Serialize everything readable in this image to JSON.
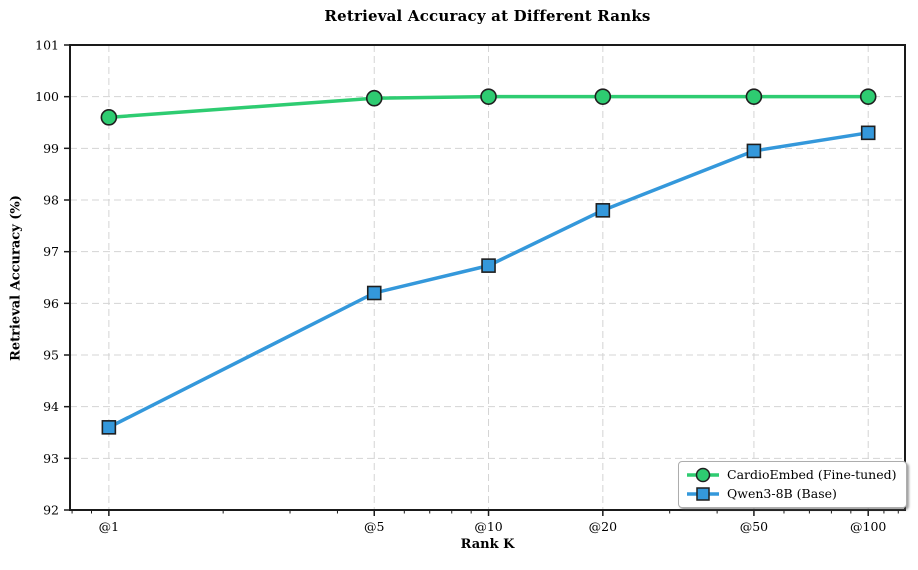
{
  "chart_data": {
    "type": "line",
    "title": "Retrieval Accuracy at Different Ranks",
    "xlabel": "Rank K",
    "ylabel": "Retrieval Accuracy (%)",
    "xscale": "log",
    "x": [
      1,
      5,
      10,
      20,
      50,
      100
    ],
    "x_tick_labels": [
      "@1",
      "@5",
      "@10",
      "@20",
      "@50",
      "@100"
    ],
    "x_minor_ticks": [
      0.8,
      0.9,
      2,
      3,
      4,
      6,
      7,
      8,
      9,
      30,
      40,
      60,
      70,
      80,
      90,
      110,
      120
    ],
    "xlim": [
      0.79,
      125
    ],
    "ylim": [
      92,
      101
    ],
    "y_ticks": [
      92,
      93,
      94,
      95,
      96,
      97,
      98,
      99,
      100,
      101
    ],
    "grid": "dashed-major-both-axes",
    "legend_position": "lower-right",
    "series": [
      {
        "name": "CardioEmbed (Fine-tuned)",
        "color": "#2ecc71",
        "marker": "circle",
        "values": [
          99.6,
          99.97,
          100.0,
          100.0,
          100.0,
          100.0
        ]
      },
      {
        "name": "Qwen3-8B (Base)",
        "color": "#3498db",
        "marker": "square",
        "values": [
          93.6,
          96.2,
          96.73,
          97.8,
          98.95,
          99.3
        ]
      }
    ],
    "colors": {
      "marker_edge": "#1f1f1f",
      "grid": "#d4d4d4",
      "spine": "#1a1a1a",
      "background": "#ffffff"
    }
  }
}
